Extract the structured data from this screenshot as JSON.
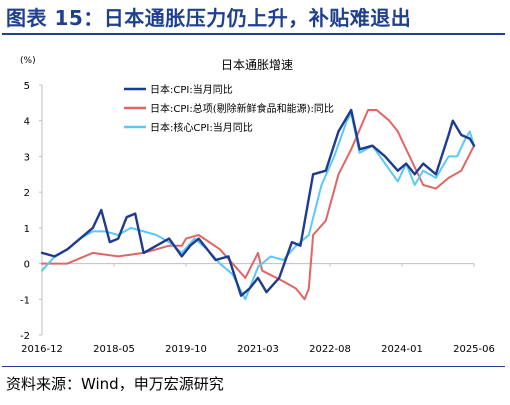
{
  "figure": {
    "title": "图表 15：日本通胀压力仍上升，补贴难退出",
    "source": "资料来源：Wind，申万宏源研究"
  },
  "chart_data": {
    "type": "line",
    "title": "日本通胀增速",
    "yunit": "(%)",
    "ylim": [
      -2,
      5
    ],
    "yticks": [
      "5",
      "4",
      "3",
      "2",
      "1",
      "0",
      "-1",
      "-2"
    ],
    "xticks": [
      "2016-12",
      "2018-05",
      "2019-10",
      "2021-03",
      "2022-08",
      "2024-01",
      "2025-06"
    ],
    "x_range": [
      "2016-12",
      "2025-06"
    ],
    "legend_position": "top-center",
    "grid": false,
    "colors": {
      "cpi": "#1f3b8f",
      "core_core": "#e06666",
      "core": "#5bc8f5",
      "axis": "#bfbfbf",
      "title": "#1f3f8f"
    },
    "series": [
      {
        "name": "日本:CPI:当月同比",
        "color": "#1f3b8f",
        "points": [
          [
            "2016-12",
            0.3
          ],
          [
            "2017-03",
            0.2
          ],
          [
            "2017-06",
            0.4
          ],
          [
            "2017-09",
            0.7
          ],
          [
            "2017-12",
            1.0
          ],
          [
            "2018-02",
            1.5
          ],
          [
            "2018-04",
            0.6
          ],
          [
            "2018-06",
            0.7
          ],
          [
            "2018-08",
            1.3
          ],
          [
            "2018-10",
            1.4
          ],
          [
            "2018-12",
            0.3
          ],
          [
            "2019-03",
            0.5
          ],
          [
            "2019-06",
            0.7
          ],
          [
            "2019-09",
            0.2
          ],
          [
            "2019-11",
            0.5
          ],
          [
            "2020-01",
            0.7
          ],
          [
            "2020-03",
            0.4
          ],
          [
            "2020-05",
            0.1
          ],
          [
            "2020-08",
            0.2
          ],
          [
            "2020-11",
            -0.9
          ],
          [
            "2021-01",
            -0.7
          ],
          [
            "2021-03",
            -0.4
          ],
          [
            "2021-05",
            -0.8
          ],
          [
            "2021-08",
            -0.4
          ],
          [
            "2021-11",
            0.6
          ],
          [
            "2022-01",
            0.5
          ],
          [
            "2022-04",
            2.5
          ],
          [
            "2022-07",
            2.6
          ],
          [
            "2022-10",
            3.7
          ],
          [
            "2023-01",
            4.3
          ],
          [
            "2023-03",
            3.2
          ],
          [
            "2023-06",
            3.3
          ],
          [
            "2023-09",
            3.0
          ],
          [
            "2023-12",
            2.6
          ],
          [
            "2024-02",
            2.8
          ],
          [
            "2024-04",
            2.5
          ],
          [
            "2024-06",
            2.8
          ],
          [
            "2024-09",
            2.5
          ],
          [
            "2024-12",
            3.6
          ],
          [
            "2025-01",
            4.0
          ],
          [
            "2025-03",
            3.6
          ],
          [
            "2025-05",
            3.5
          ],
          [
            "2025-06",
            3.3
          ]
        ]
      },
      {
        "name": "日本:CPI:总项(剔除新鲜食品和能源):同比",
        "color": "#e06666",
        "points": [
          [
            "2016-12",
            0.0
          ],
          [
            "2017-06",
            0.0
          ],
          [
            "2017-12",
            0.3
          ],
          [
            "2018-06",
            0.2
          ],
          [
            "2018-12",
            0.3
          ],
          [
            "2019-06",
            0.5
          ],
          [
            "2019-09",
            0.5
          ],
          [
            "2019-10",
            0.7
          ],
          [
            "2020-01",
            0.8
          ],
          [
            "2020-06",
            0.4
          ],
          [
            "2020-09",
            0.0
          ],
          [
            "2020-12",
            -0.4
          ],
          [
            "2021-03",
            0.3
          ],
          [
            "2021-04",
            -0.2
          ],
          [
            "2021-09",
            -0.5
          ],
          [
            "2021-12",
            -0.7
          ],
          [
            "2022-02",
            -1.0
          ],
          [
            "2022-03",
            -0.7
          ],
          [
            "2022-04",
            0.8
          ],
          [
            "2022-07",
            1.2
          ],
          [
            "2022-10",
            2.5
          ],
          [
            "2023-01",
            3.2
          ],
          [
            "2023-05",
            4.3
          ],
          [
            "2023-07",
            4.3
          ],
          [
            "2023-10",
            4.0
          ],
          [
            "2023-12",
            3.7
          ],
          [
            "2024-02",
            3.2
          ],
          [
            "2024-06",
            2.2
          ],
          [
            "2024-09",
            2.1
          ],
          [
            "2024-12",
            2.4
          ],
          [
            "2025-03",
            2.6
          ],
          [
            "2025-06",
            3.3
          ]
        ]
      },
      {
        "name": "日本:核心CPI:当月同比",
        "color": "#5bc8f5",
        "points": [
          [
            "2016-12",
            -0.2
          ],
          [
            "2017-03",
            0.2
          ],
          [
            "2017-06",
            0.4
          ],
          [
            "2017-09",
            0.7
          ],
          [
            "2017-12",
            0.9
          ],
          [
            "2018-03",
            0.9
          ],
          [
            "2018-06",
            0.8
          ],
          [
            "2018-09",
            1.0
          ],
          [
            "2018-12",
            0.9
          ],
          [
            "2019-03",
            0.8
          ],
          [
            "2019-06",
            0.6
          ],
          [
            "2019-09",
            0.3
          ],
          [
            "2019-12",
            0.7
          ],
          [
            "2020-03",
            0.4
          ],
          [
            "2020-06",
            0.0
          ],
          [
            "2020-09",
            -0.3
          ],
          [
            "2020-12",
            -1.0
          ],
          [
            "2021-03",
            -0.1
          ],
          [
            "2021-06",
            0.2
          ],
          [
            "2021-09",
            0.1
          ],
          [
            "2021-12",
            0.5
          ],
          [
            "2022-03",
            0.8
          ],
          [
            "2022-06",
            2.2
          ],
          [
            "2022-09",
            3.0
          ],
          [
            "2022-12",
            4.0
          ],
          [
            "2023-01",
            4.2
          ],
          [
            "2023-03",
            3.1
          ],
          [
            "2023-06",
            3.3
          ],
          [
            "2023-09",
            2.8
          ],
          [
            "2023-12",
            2.3
          ],
          [
            "2024-02",
            2.8
          ],
          [
            "2024-04",
            2.2
          ],
          [
            "2024-06",
            2.6
          ],
          [
            "2024-09",
            2.4
          ],
          [
            "2024-12",
            3.0
          ],
          [
            "2025-02",
            3.0
          ],
          [
            "2025-04",
            3.5
          ],
          [
            "2025-05",
            3.7
          ],
          [
            "2025-06",
            3.3
          ]
        ]
      }
    ]
  }
}
